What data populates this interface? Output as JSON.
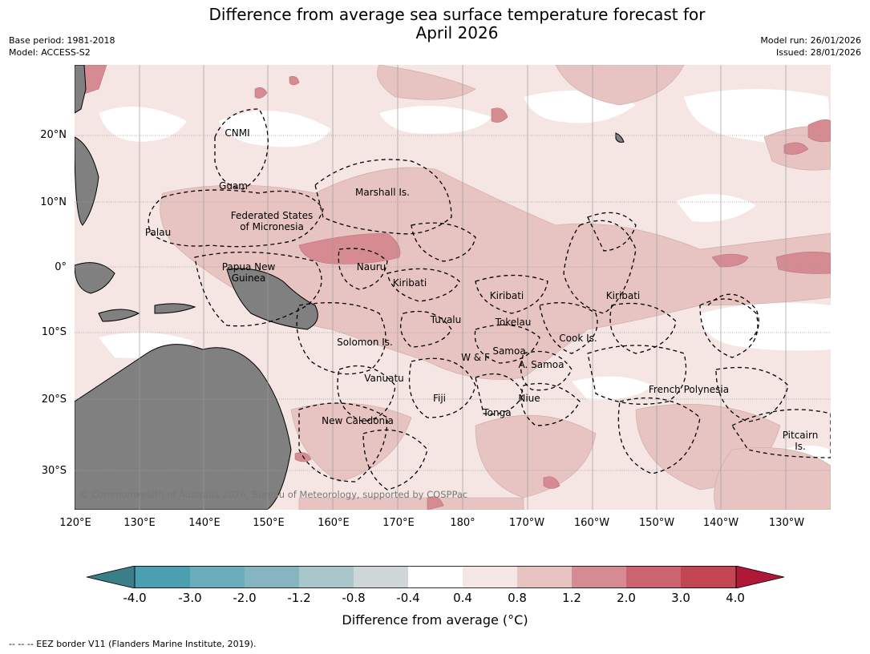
{
  "title": {
    "line1": "Difference from average sea surface temperature forecast for",
    "line2": "April 2026"
  },
  "meta": {
    "base_period": "Base period: 1981-2018",
    "model": "Model: ACCESS-S2",
    "model_run": "Model run: 26/01/2026",
    "issued": "Issued: 28/01/2026"
  },
  "axes": {
    "lat_labels": [
      "20°N",
      "10°N",
      "0°",
      "10°S",
      "20°S",
      "30°S"
    ],
    "lon_labels": [
      "120°E",
      "130°E",
      "140°E",
      "150°E",
      "160°E",
      "170°E",
      "180°",
      "170°W",
      "160°W",
      "150°W",
      "140°W",
      "130°W"
    ]
  },
  "map_labels": [
    "CNMI",
    "Guam",
    "Marshall Is.",
    "Federated States",
    "of Micronesia",
    "Palau",
    "Papua New",
    "Guinea",
    "Nauru",
    "Kiribati",
    "Kiribati",
    "Kiribati",
    "Tuvalu",
    "Tokelau",
    "Cook Is.",
    "Solomon Is.",
    "Samoa",
    "W & F",
    "A. Samoa",
    "Vanuatu",
    "Fiji",
    "Niue",
    "Tonga",
    "French Polynesia",
    "New Caledonia",
    "Pitcairn",
    "Is."
  ],
  "copyright": "© Commonwealth of Australia 2026, Bureau of Meteorology, supported by COSPPac",
  "colorbar": {
    "ticks": [
      "-4.0",
      "-3.0",
      "-2.0",
      "-1.2",
      "-0.8",
      "-0.4",
      "0.4",
      "0.8",
      "1.2",
      "2.0",
      "3.0",
      "4.0"
    ],
    "colors": [
      "#3b7d88",
      "#4a9fb1",
      "#6aaebd",
      "#86b4c1",
      "#a8c6cc",
      "#cfd6d8",
      "#ffffff",
      "#f4e6e4",
      "#e7c4c1",
      "#d68b93",
      "#cb6371",
      "#c14553",
      "#b01838"
    ],
    "label": "Difference from average (°C)"
  },
  "footnote": "--  --  -- EEZ border V11 (Flanders Marine Institute, 2019).",
  "colors": {
    "land": "#808080",
    "neutral": "#f5e6e4",
    "warm1": "#e7c4c1",
    "warm2": "#d68b93",
    "warm3": "#cb6371"
  }
}
